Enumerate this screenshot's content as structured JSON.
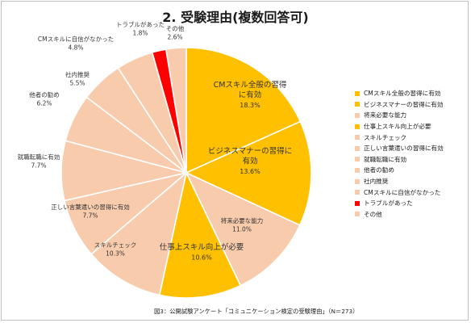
{
  "title": "2. 受験理由(複数回答可)",
  "caption": "図3：公開試験アンケート「コミュニケーション検定の受験理由」（N＝273）",
  "chart_data": {
    "type": "pie",
    "unit": "%",
    "slices": [
      {
        "name": "CMスキル全般の習得に有効",
        "label_lines": [
          "CMスキル全般の習得",
          "に有効"
        ],
        "value": 18.3,
        "value_text": "18.3%",
        "color": "#ffc000"
      },
      {
        "name": "ビジネスマナーの習得に有効",
        "label_lines": [
          "ビジネスマナーの習得に",
          "有効"
        ],
        "value": 13.6,
        "value_text": "13.6%",
        "color": "#ffc000"
      },
      {
        "name": "将来必要な能力",
        "label_lines": [
          "将来必要な能力"
        ],
        "value": 11.0,
        "value_text": "11.0%",
        "color": "#f8cbad"
      },
      {
        "name": "仕事上スキル向上が必要",
        "label_lines": [
          "仕事上スキル向上が必要"
        ],
        "value": 10.6,
        "value_text": "10.6%",
        "color": "#ffc000"
      },
      {
        "name": "スキルチェック",
        "label_lines": [
          "スキルチェック"
        ],
        "value": 10.3,
        "value_text": "10.3%",
        "color": "#f8cbad"
      },
      {
        "name": "正しい言葉遣いの習得に有効",
        "label_lines": [
          "正しい言葉遣いの習得に有効"
        ],
        "value": 7.7,
        "value_text": "7.7%",
        "color": "#f8cbad"
      },
      {
        "name": "就職転職に有効",
        "label_lines": [
          "就職転職に有効"
        ],
        "value": 7.7,
        "value_text": "7.7%",
        "color": "#f8cbad"
      },
      {
        "name": "他者の勧め",
        "label_lines": [
          "他者の勧め"
        ],
        "value": 6.2,
        "value_text": "6.2%",
        "color": "#f8cbad"
      },
      {
        "name": "社内推奨",
        "label_lines": [
          "社内推奨"
        ],
        "value": 5.5,
        "value_text": "5.5%",
        "color": "#f8cbad"
      },
      {
        "name": "CMスキルに自信がなかった",
        "label_lines": [
          "CMスキルに自信がなかった"
        ],
        "value": 4.8,
        "value_text": "4.8%",
        "color": "#f8cbad"
      },
      {
        "name": "トラブルがあった",
        "label_lines": [
          "トラブルがあった"
        ],
        "value": 1.8,
        "value_text": "1.8%",
        "color": "#ff0000"
      },
      {
        "name": "その他",
        "label_lines": [
          "その他"
        ],
        "value": 2.6,
        "value_text": "2.6%",
        "color": "#f8cbad"
      }
    ],
    "legend_placement": "right"
  }
}
